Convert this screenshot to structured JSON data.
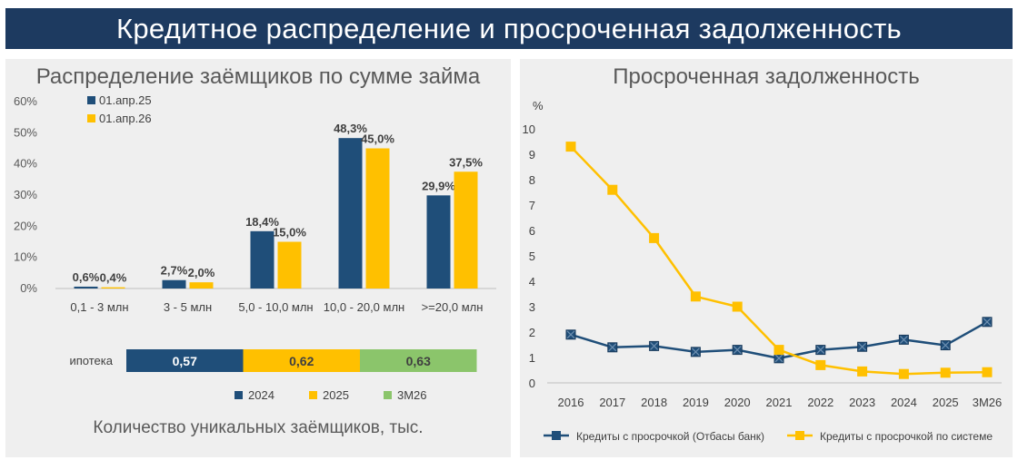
{
  "header": {
    "title": "Кредитное распределение и просроченная задолженность"
  },
  "colors": {
    "navy": "#1f4e79",
    "yellow": "#ffc000",
    "green": "#8bc56b",
    "banner": "#1d3a60",
    "panel": "#efefef"
  },
  "left_panel": {
    "title": "Распределение заёмщиков по сумме займа",
    "footnote": "Количество уникальных заёмщиков, тыс."
  },
  "right_panel": {
    "title": "Просроченная задолженность"
  },
  "chart_data": [
    {
      "type": "bar",
      "title": "Распределение заёмщиков по сумме займа",
      "categories": [
        "0,1 - 3 млн",
        "3 - 5 млн",
        "5,0 - 10,0 млн",
        "10,0 - 20,0 млн",
        ">=20,0 млн"
      ],
      "series": [
        {
          "name": "01.апр.25",
          "values": [
            0.6,
            2.7,
            18.4,
            48.3,
            29.9
          ],
          "labels": [
            "0,6%",
            "2,7%",
            "18,4%",
            "48,3%",
            "29,9%"
          ],
          "color": "#1f4e79"
        },
        {
          "name": "01.апр.26",
          "values": [
            0.4,
            2.0,
            15.0,
            45.0,
            37.5
          ],
          "labels": [
            "0,4%",
            "2,0%",
            "15,0%",
            "45,0%",
            "37,5%"
          ],
          "color": "#ffc000"
        }
      ],
      "ylim": [
        0,
        60
      ],
      "yticks": [
        "0%",
        "10%",
        "20%",
        "30%",
        "40%",
        "50%",
        "60%"
      ],
      "legend": "top-left",
      "grid": false
    },
    {
      "type": "bar",
      "orientation": "horizontal-stacked",
      "categories": [
        "ипотека"
      ],
      "series": [
        {
          "name": "2024",
          "values": [
            0.57
          ],
          "label": "0,57",
          "color": "#1f4e79"
        },
        {
          "name": "2025",
          "values": [
            0.62
          ],
          "label": "0,62",
          "color": "#ffc000"
        },
        {
          "name": "3М26",
          "values": [
            0.63
          ],
          "label": "0,63",
          "color": "#8bc56b"
        }
      ],
      "legend": "bottom",
      "footnote": "Количество уникальных заёмщиков, тыс."
    },
    {
      "type": "line",
      "title": "Просроченная задолженность",
      "x": [
        "2016",
        "2017",
        "2018",
        "2019",
        "2020",
        "2021",
        "2022",
        "2023",
        "2024",
        "2025",
        "3М26"
      ],
      "series": [
        {
          "name": "Кредиты с просрочкой (Отбасы банк)",
          "values": [
            1.9,
            1.4,
            1.45,
            1.22,
            1.3,
            0.97,
            1.3,
            1.42,
            1.7,
            1.48,
            2.4
          ],
          "color": "#1f4e79",
          "marker": "square-x"
        },
        {
          "name": "Кредиты с просрочкой по системе",
          "values": [
            9.3,
            7.6,
            5.7,
            3.4,
            3.0,
            1.3,
            0.7,
            0.45,
            0.35,
            0.4,
            0.42
          ],
          "color": "#ffc000",
          "marker": "square"
        }
      ],
      "ylabel": "%",
      "ylim": [
        0,
        10
      ],
      "yticks": [
        "0",
        "1",
        "2",
        "3",
        "4",
        "5",
        "6",
        "7",
        "8",
        "9",
        "10"
      ],
      "grid": false,
      "legend": "bottom"
    }
  ]
}
